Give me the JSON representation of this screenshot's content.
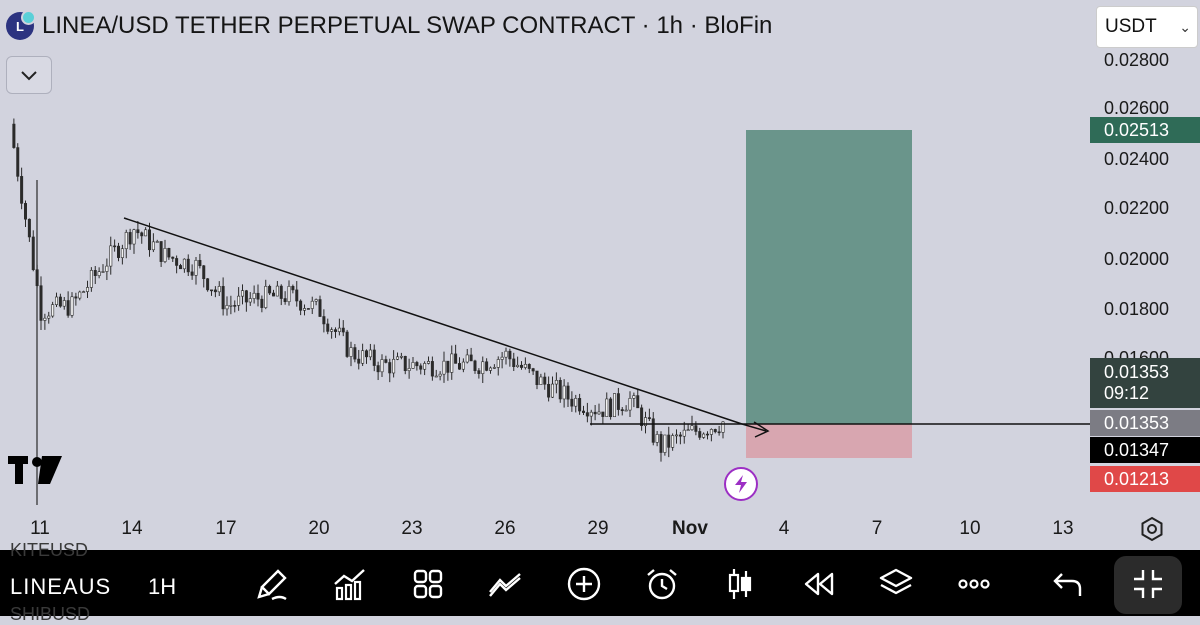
{
  "header": {
    "logo_letter": "L",
    "title": "LINEA/USD TETHER PERPETUAL SWAP CONTRACT · 1h · BloFin",
    "currency": "USDT"
  },
  "price_axis": {
    "labels": [
      "0.02800",
      "0.02600",
      "0.02400",
      "0.02200",
      "0.02000",
      "0.01800",
      "0.01600"
    ]
  },
  "price_badges": {
    "take_profit": "0.02513",
    "last_price": "0.01353",
    "countdown": "09:12",
    "entry": "0.01353",
    "crosshair": "0.01347",
    "stop_loss": "0.01213"
  },
  "colors": {
    "background": "#d2d3de",
    "profit_zone": "#6a958b",
    "loss_zone": "#d8a6b0",
    "take_profit_badge": "#2f6b57",
    "last_price_badge": "#33433f",
    "entry_badge": "#7c7c84",
    "crosshair_badge": "#000000",
    "stop_loss_badge": "#e04848"
  },
  "time_axis": {
    "labels": [
      "11",
      "14",
      "17",
      "20",
      "23",
      "26",
      "29",
      "Nov",
      "4",
      "7",
      "10",
      "13"
    ]
  },
  "toolbar": {
    "symbol": "LINEAUS",
    "interval": "1H",
    "ghost_above": "KITEUSD",
    "ghost_below": "SHIBUSD",
    "icons": [
      "brush-icon",
      "indicators-icon",
      "templates-icon",
      "compare-icon",
      "add-icon",
      "alert-icon",
      "candles-icon",
      "replay-icon",
      "layers-icon",
      "more-icon",
      "undo-icon",
      "fullscreen-exit-icon"
    ]
  },
  "chart_data": {
    "type": "candlestick",
    "x": [
      "Oct 10",
      "Oct 11",
      "Oct 12",
      "Oct 13",
      "Oct 14",
      "Oct 15",
      "Oct 16",
      "Oct 17",
      "Oct 18",
      "Oct 19",
      "Oct 20",
      "Oct 21",
      "Oct 22",
      "Oct 23",
      "Oct 24",
      "Oct 25",
      "Oct 26",
      "Oct 27",
      "Oct 28",
      "Oct 29",
      "Oct 30",
      "Oct 31",
      "Nov 1",
      "Nov 2"
    ],
    "close": [
      0.0255,
      0.018,
      0.0182,
      0.0198,
      0.0213,
      0.0202,
      0.0198,
      0.0182,
      0.0185,
      0.0186,
      0.018,
      0.0163,
      0.0158,
      0.0158,
      0.0158,
      0.0158,
      0.0162,
      0.0152,
      0.0145,
      0.014,
      0.0144,
      0.0125,
      0.0131,
      0.0135
    ],
    "last_price": 0.01353,
    "position": {
      "take_profit": 0.02513,
      "entry": 0.01353,
      "stop_loss": 0.01213
    },
    "ylim": [
      0.0116,
      0.028
    ],
    "grid": false
  }
}
